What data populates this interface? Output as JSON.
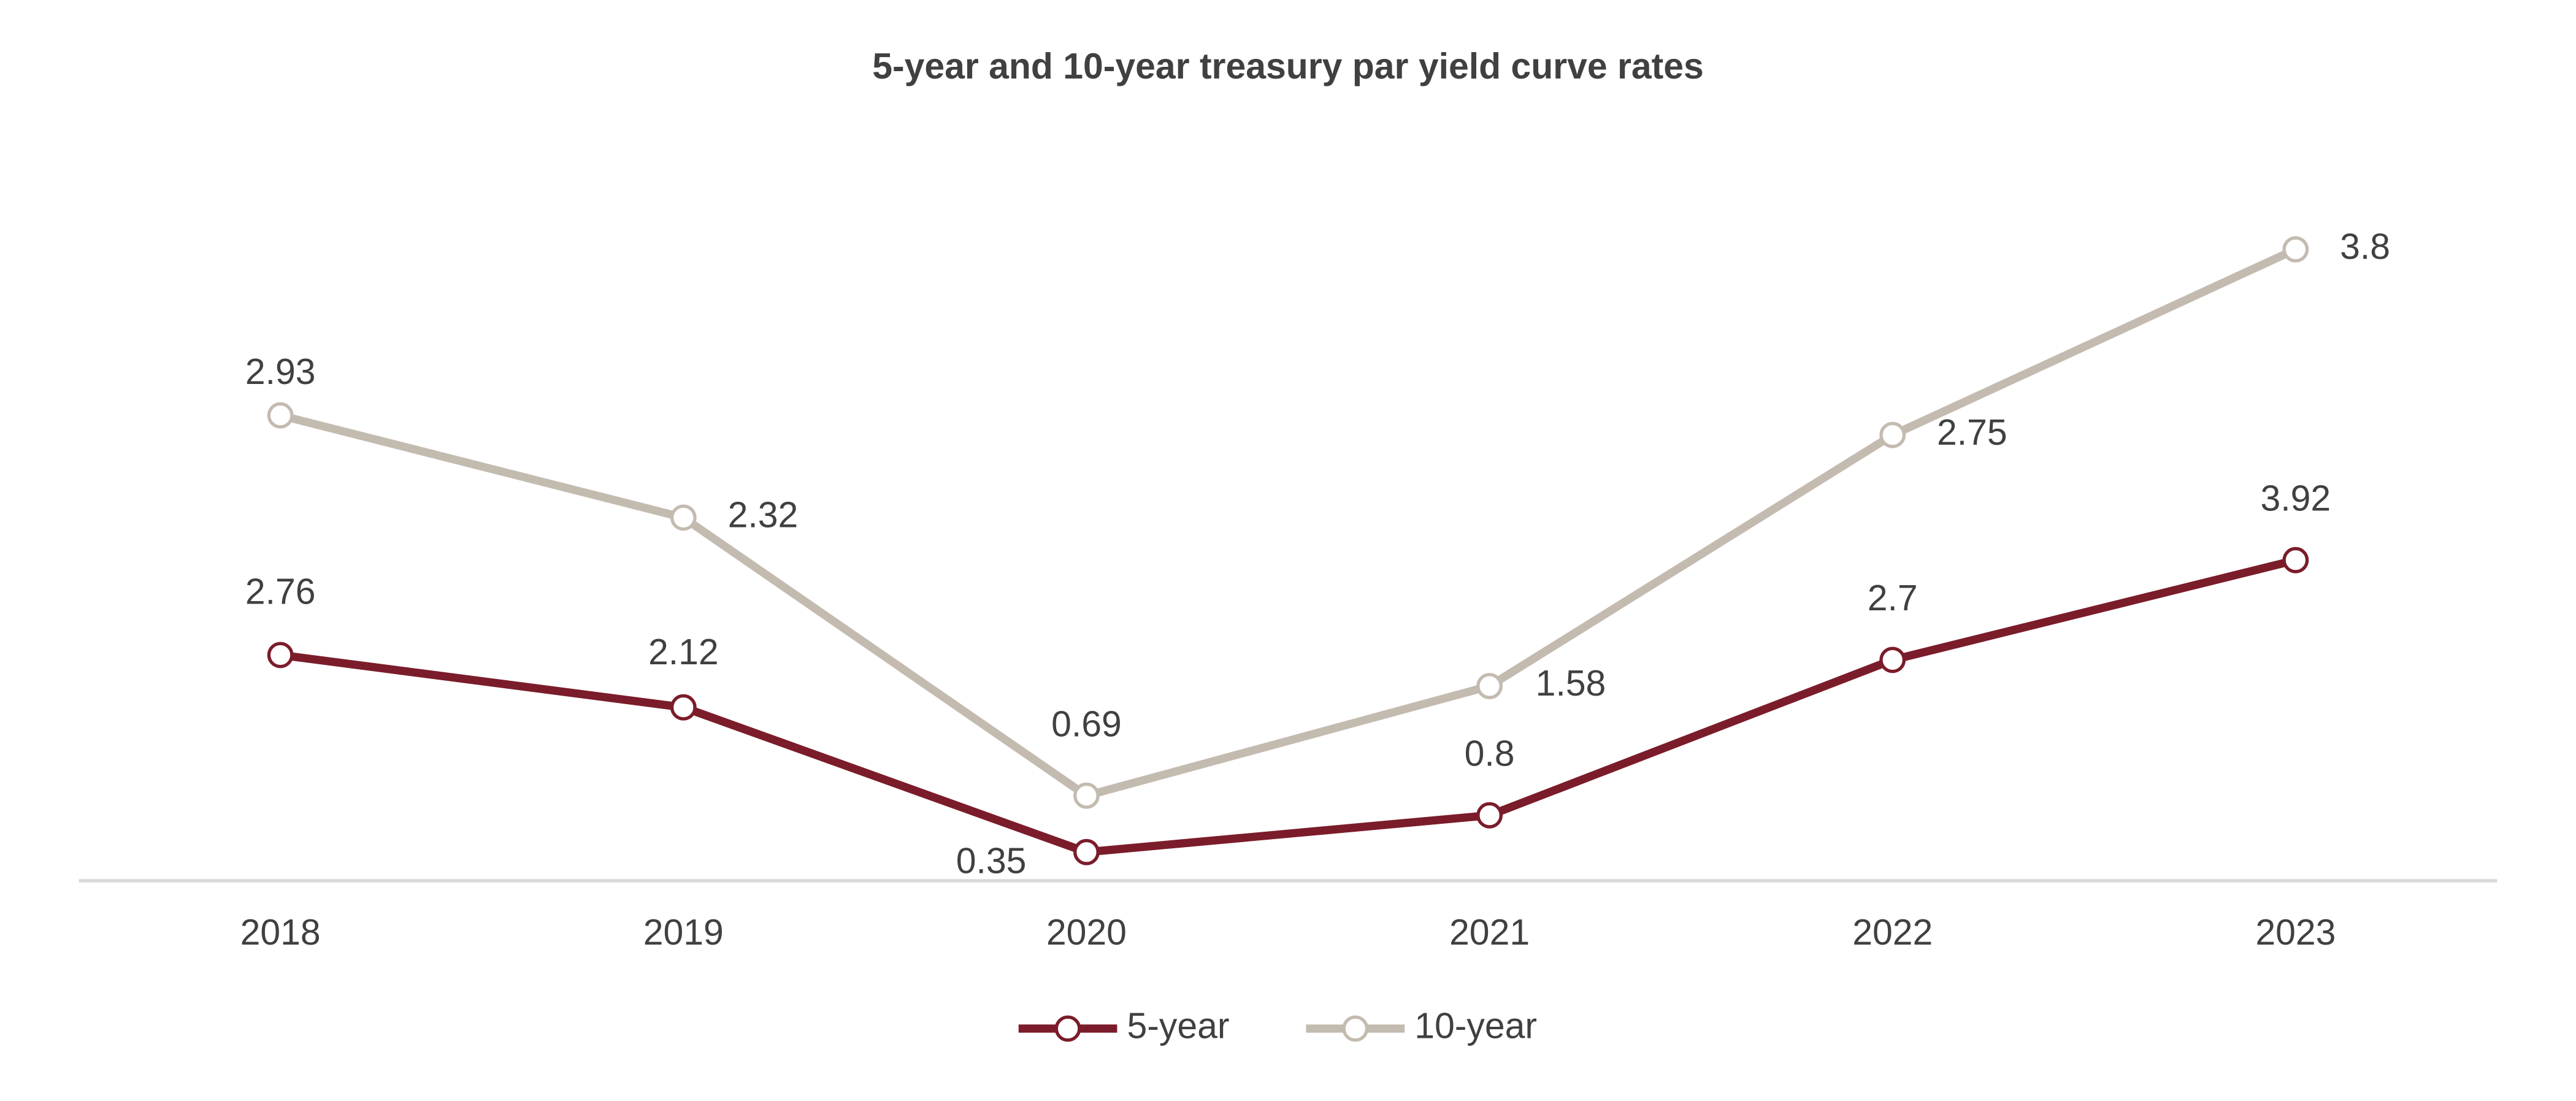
{
  "chart_data": {
    "type": "line",
    "stacked": true,
    "title": "5-year and 10-year treasury par yield curve rates",
    "categories": [
      "2018",
      "2019",
      "2020",
      "2021",
      "2022",
      "2023"
    ],
    "series": [
      {
        "name": "5-year",
        "color": "#7b1c2a",
        "values": [
          2.76,
          2.12,
          0.35,
          0.8,
          2.7,
          3.92
        ]
      },
      {
        "name": "10-year",
        "color": "#c4bbb0",
        "values": [
          2.93,
          2.32,
          0.69,
          1.58,
          2.75,
          3.8
        ]
      }
    ],
    "ylim": [
      0,
      9
    ],
    "legend": "bottom"
  }
}
